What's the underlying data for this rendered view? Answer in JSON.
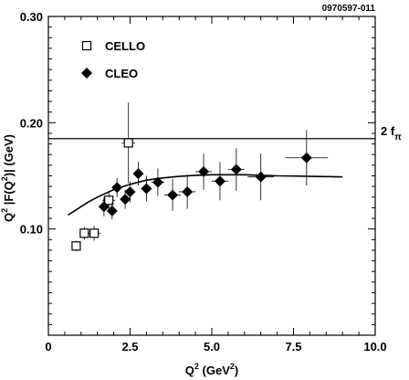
{
  "chart_data": {
    "type": "scatter",
    "figure_id": "0970597-011",
    "xlabel": {
      "main": "Q",
      "sup1": "2",
      "rest": " (GeV",
      "sup2": "2",
      "end": ")"
    },
    "ylabel": {
      "p1": "Q",
      "s1": "2",
      "p2": " |F(Q",
      "s2": "2",
      "p3": ")| (GeV)"
    },
    "xlim": [
      0,
      10
    ],
    "ylim": [
      0,
      0.3
    ],
    "x_ticks": [
      {
        "value": 0,
        "label": "0"
      },
      {
        "value": 2.5,
        "label": "2.5"
      },
      {
        "value": 5,
        "label": "5.0"
      },
      {
        "value": 7.5,
        "label": "7.5"
      },
      {
        "value": 10,
        "label": "10.0"
      }
    ],
    "y_ticks": [
      {
        "value": 0.1,
        "label": "0.10"
      },
      {
        "value": 0.2,
        "label": "0.20"
      },
      {
        "value": 0.3,
        "label": "0.30"
      }
    ],
    "reference_line": {
      "y": 0.185,
      "label_main": "2 f",
      "label_sub": "π"
    },
    "series": [
      {
        "name": "CELLO",
        "marker": "open-square",
        "points": [
          {
            "x": 0.85,
            "y": 0.084,
            "xerr": 0.1,
            "yerr": 0.005
          },
          {
            "x": 1.1,
            "y": 0.096,
            "xerr": 0.15,
            "yerr": 0.006
          },
          {
            "x": 1.4,
            "y": 0.096,
            "xerr": 0.2,
            "yerr": 0.007
          },
          {
            "x": 1.85,
            "y": 0.127,
            "xerr": 0.2,
            "yerr": 0.009
          },
          {
            "x": 2.45,
            "y": 0.181,
            "xerr": 0.2,
            "yerr": 0.038
          }
        ]
      },
      {
        "name": "CLEO",
        "marker": "filled-diamond",
        "points": [
          {
            "x": 1.7,
            "y": 0.121,
            "xerr": 0.1,
            "yerr": 0.009
          },
          {
            "x": 1.95,
            "y": 0.117,
            "xerr": 0.1,
            "yerr": 0.008
          },
          {
            "x": 2.1,
            "y": 0.139,
            "xerr": 0.1,
            "yerr": 0.009
          },
          {
            "x": 2.35,
            "y": 0.128,
            "xerr": 0.1,
            "yerr": 0.009
          },
          {
            "x": 2.5,
            "y": 0.135,
            "xerr": 0.12,
            "yerr": 0.01
          },
          {
            "x": 2.75,
            "y": 0.152,
            "xerr": 0.12,
            "yerr": 0.011
          },
          {
            "x": 3.0,
            "y": 0.138,
            "xerr": 0.15,
            "yerr": 0.012
          },
          {
            "x": 3.35,
            "y": 0.144,
            "xerr": 0.2,
            "yerr": 0.013
          },
          {
            "x": 3.8,
            "y": 0.132,
            "xerr": 0.25,
            "yerr": 0.015
          },
          {
            "x": 4.25,
            "y": 0.135,
            "xerr": 0.25,
            "yerr": 0.016
          },
          {
            "x": 4.75,
            "y": 0.154,
            "xerr": 0.25,
            "yerr": 0.017
          },
          {
            "x": 5.25,
            "y": 0.145,
            "xerr": 0.25,
            "yerr": 0.018
          },
          {
            "x": 5.75,
            "y": 0.156,
            "xerr": 0.25,
            "yerr": 0.02
          },
          {
            "x": 6.5,
            "y": 0.149,
            "xerr": 0.4,
            "yerr": 0.022
          },
          {
            "x": 7.9,
            "y": 0.167,
            "xerr": 0.65,
            "yerr": 0.026
          }
        ]
      }
    ],
    "curve": [
      [
        0.6,
        0.113
      ],
      [
        0.8,
        0.117
      ],
      [
        1.0,
        0.121
      ],
      [
        1.2,
        0.125
      ],
      [
        1.5,
        0.13
      ],
      [
        2.0,
        0.137
      ],
      [
        2.5,
        0.142
      ],
      [
        3.0,
        0.146
      ],
      [
        3.5,
        0.148
      ],
      [
        4.0,
        0.1495
      ],
      [
        4.5,
        0.1505
      ],
      [
        5.0,
        0.151
      ],
      [
        5.5,
        0.151
      ],
      [
        6.0,
        0.151
      ],
      [
        6.5,
        0.1505
      ],
      [
        7.0,
        0.15
      ],
      [
        7.5,
        0.1498
      ],
      [
        8.0,
        0.1495
      ],
      [
        8.5,
        0.1493
      ],
      [
        9.0,
        0.149
      ]
    ],
    "grid": false,
    "legend_position": "top-left",
    "colors": {
      "ink": "#000000",
      "background": "#ffffff"
    }
  }
}
